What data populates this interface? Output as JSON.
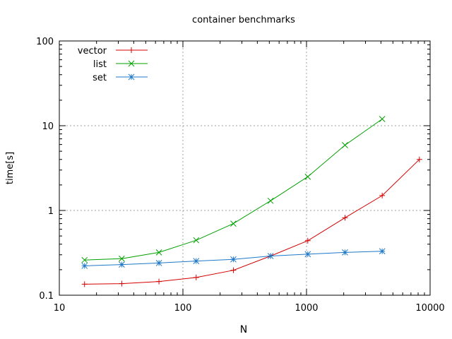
{
  "chart_data": {
    "type": "line",
    "title": "container benchmarks",
    "xlabel": "N",
    "ylabel": "time[s]",
    "x_scale": "log",
    "y_scale": "log",
    "xlim": [
      10,
      10000
    ],
    "ylim": [
      0.1,
      100
    ],
    "x_ticks": [
      {
        "value": 10,
        "label": "10"
      },
      {
        "value": 100,
        "label": "100"
      },
      {
        "value": 1000,
        "label": "1000"
      },
      {
        "value": 10000,
        "label": "10000"
      }
    ],
    "y_ticks": [
      {
        "value": 0.1,
        "label": "0.1"
      },
      {
        "value": 1,
        "label": "1"
      },
      {
        "value": 10,
        "label": "10"
      },
      {
        "value": 100,
        "label": "100"
      }
    ],
    "grid": true,
    "legend_position": "top-left",
    "series": [
      {
        "name": "vector",
        "color": "#d40000",
        "marker": "plus",
        "x": [
          16,
          32,
          64,
          128,
          256,
          512,
          1024,
          2048,
          4096,
          8192
        ],
        "y": [
          0.135,
          0.137,
          0.145,
          0.162,
          0.197,
          0.29,
          0.44,
          0.82,
          1.5,
          4.0
        ]
      },
      {
        "name": "list",
        "color": "#00a000",
        "marker": "cross",
        "x": [
          16,
          32,
          64,
          128,
          256,
          512,
          1024,
          2048,
          4096
        ],
        "y": [
          0.26,
          0.27,
          0.32,
          0.445,
          0.7,
          1.3,
          2.5,
          5.9,
          12.0
        ]
      },
      {
        "name": "set",
        "color": "#1e78c8",
        "marker": "star",
        "x": [
          16,
          32,
          64,
          128,
          256,
          512,
          1024,
          2048,
          4096
        ],
        "y": [
          0.222,
          0.23,
          0.24,
          0.253,
          0.265,
          0.29,
          0.305,
          0.32,
          0.33
        ]
      }
    ]
  }
}
